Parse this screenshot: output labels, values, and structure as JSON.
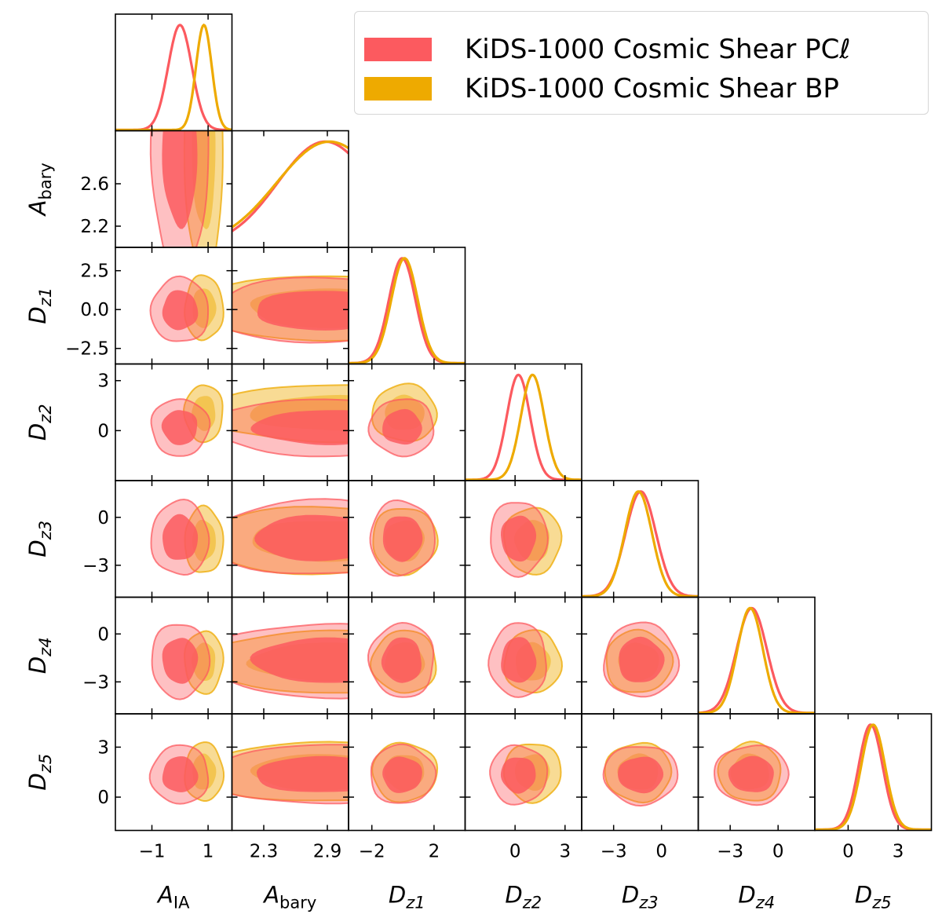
{
  "colors": {
    "pcl": "#fc5a5f",
    "bp": "#eeaa00"
  },
  "legend": {
    "items": [
      {
        "key": "pcl",
        "label": "KiDS-1000 Cosmic Shear PCℓ",
        "color": "#fc5a5f"
      },
      {
        "key": "bp",
        "label": "KiDS-1000 Cosmic Shear BP",
        "color": "#eeaa00"
      }
    ]
  },
  "chart_data": {
    "type": "corner",
    "title": "",
    "parameters": [
      {
        "key": "A_IA",
        "base": "A",
        "sub": "IA",
        "subItalic": false,
        "range": [
          -2.3,
          1.85
        ],
        "ticks": [
          -1,
          1
        ],
        "tickLabels": [
          "−1",
          "1"
        ]
      },
      {
        "key": "A_bary",
        "base": "A",
        "sub": "bary",
        "subItalic": false,
        "range": [
          2.0,
          3.1
        ],
        "ticks": [
          2.2,
          2.6
        ],
        "tickLabels": [
          "2.2",
          "2.6"
        ],
        "xticks": [
          2.3,
          2.9
        ],
        "xtickLabels": [
          "2.3",
          "2.9"
        ]
      },
      {
        "key": "D_z1",
        "base": "D",
        "sub": "z1",
        "subItalic": true,
        "range": [
          -3.5,
          4.0
        ],
        "ticks": [
          -2.5,
          0.0,
          2.5
        ],
        "tickLabels": [
          "−2.5",
          "0.0",
          "2.5"
        ],
        "xticks": [
          -2,
          2
        ],
        "xtickLabels": [
          "−2",
          "2"
        ]
      },
      {
        "key": "D_z2",
        "base": "D",
        "sub": "z2",
        "subItalic": true,
        "range": [
          -3.0,
          4.0
        ],
        "ticks": [
          0,
          3
        ],
        "tickLabels": [
          "0",
          "3"
        ],
        "yticks": [
          0,
          3
        ],
        "ytickLabels": [
          "0",
          "3"
        ]
      },
      {
        "key": "D_z3",
        "base": "D",
        "sub": "z3",
        "subItalic": true,
        "range": [
          -5.0,
          2.3
        ],
        "ticks": [
          -3,
          0
        ],
        "tickLabels": [
          "−3",
          "0"
        ]
      },
      {
        "key": "D_z4",
        "base": "D",
        "sub": "z4",
        "subItalic": true,
        "range": [
          -5.0,
          2.3
        ],
        "ticks": [
          -3,
          0
        ],
        "tickLabels": [
          "−3",
          "0"
        ]
      },
      {
        "key": "D_z5",
        "base": "D",
        "sub": "z5",
        "subItalic": true,
        "range": [
          -2.0,
          5.0
        ],
        "ticks": [
          0,
          3
        ],
        "tickLabels": [
          "0",
          "3"
        ]
      }
    ],
    "series": [
      {
        "name": "KiDS-1000 Cosmic Shear PCℓ",
        "key": "pcl",
        "mean": [
          0.0,
          2.88,
          -0.05,
          0.2,
          -1.3,
          -1.65,
          1.35
        ],
        "sigma": [
          0.42,
          0.45,
          0.85,
          0.7,
          0.95,
          0.95,
          0.72
        ],
        "peak_pct": [
          100,
          100,
          100,
          100,
          100,
          100,
          100
        ]
      },
      {
        "name": "KiDS-1000 Cosmic Shear BP",
        "key": "bp",
        "mean": [
          0.85,
          2.92,
          0.1,
          1.05,
          -1.45,
          -1.75,
          1.5
        ],
        "sigma": [
          0.28,
          0.5,
          0.85,
          0.7,
          0.85,
          0.8,
          0.72
        ],
        "peak_pct": [
          100,
          100,
          100,
          100,
          100,
          100,
          100
        ]
      }
    ],
    "contour_levels": [
      "68%",
      "95%"
    ]
  }
}
